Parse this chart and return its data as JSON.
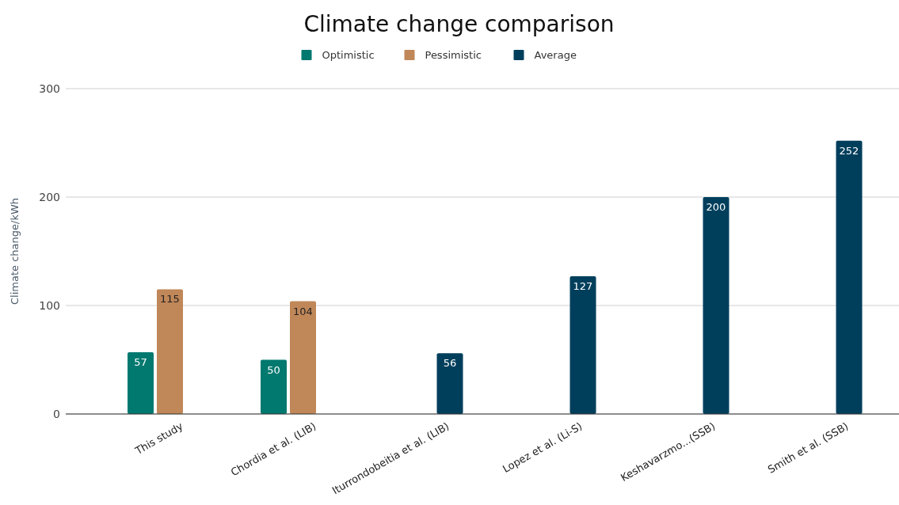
{
  "chart_data": {
    "type": "bar",
    "title": "Climate change comparison",
    "ylabel": "Climate change/kWh",
    "categories": [
      "This study",
      "Chordia et al. (LIB)",
      "Iturrondobeitia et al. (LIB)",
      "Lopez et al. (Li-S)",
      "Keshavarzmo...(SSB)",
      "Smith et al. (SSB)"
    ],
    "series": [
      {
        "name": "Optimistic",
        "color": "#01796f",
        "values": [
          57,
          50,
          null,
          null,
          null,
          null
        ]
      },
      {
        "name": "Pessimistic",
        "color": "#c08759",
        "values": [
          115,
          104,
          null,
          null,
          null,
          null
        ]
      },
      {
        "name": "Average",
        "color": "#003f5c",
        "values": [
          null,
          null,
          56,
          127,
          200,
          252
        ]
      }
    ],
    "ylim": [
      0,
      300
    ],
    "yticks": [
      0,
      100,
      200,
      300
    ],
    "grid": "y",
    "legend": "top",
    "data_labels": true
  }
}
